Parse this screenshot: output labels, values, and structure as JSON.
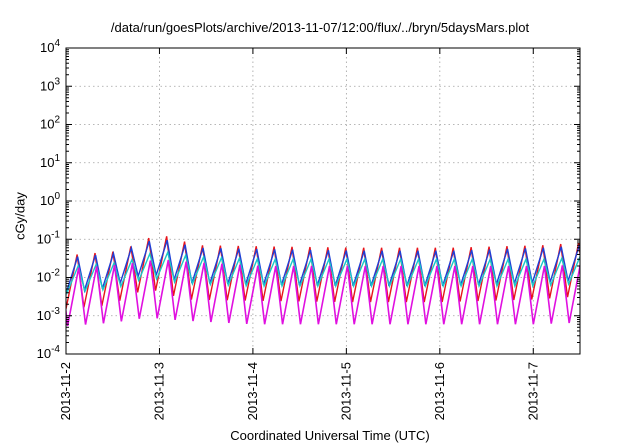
{
  "chart_data": {
    "type": "line",
    "title": "/data/run/goesPlots/archive/2013-11-07/12:00/flux/../bryn/5daysMars.plot",
    "xlabel": "Coordinated Universal Time (UTC)",
    "ylabel": "cGy/day",
    "x_scale": "time",
    "y_scale": "log",
    "xlim": [
      "2013-11-02T00:00",
      "2013-11-07T12:00"
    ],
    "ylim": [
      0.0001,
      10000
    ],
    "x_ticks": [
      "2013-11-2",
      "2013-11-3",
      "2013-11-4",
      "2013-11-5",
      "2013-11-6",
      "2013-11-7"
    ],
    "y_ticks": [
      {
        "base": "10",
        "exp": "-4",
        "value": 0.0001
      },
      {
        "base": "10",
        "exp": "-3",
        "value": 0.001
      },
      {
        "base": "10",
        "exp": "-2",
        "value": 0.01
      },
      {
        "base": "10",
        "exp": "-1",
        "value": 0.1
      },
      {
        "base": "10",
        "exp": "0",
        "value": 1
      },
      {
        "base": "10",
        "exp": "1",
        "value": 10
      },
      {
        "base": "10",
        "exp": "2",
        "value": 100
      },
      {
        "base": "10",
        "exp": "3",
        "value": 1000
      },
      {
        "base": "10",
        "exp": "4",
        "value": 10000
      }
    ],
    "grid": true,
    "legend": "none",
    "sawtooth_period_hours": 4.6,
    "series": [
      {
        "color": "#e8141b",
        "peaks": [
          {
            "t": "2013-11-02T00:00",
            "v": 0.04
          },
          {
            "t": "2013-11-02T12:00",
            "v": 0.05
          },
          {
            "t": "2013-11-02T16:00",
            "v": 0.09
          },
          {
            "t": "2013-11-02T21:00",
            "v": 0.13
          },
          {
            "t": "2013-11-03T01:00",
            "v": 0.11
          },
          {
            "t": "2013-11-03T06:00",
            "v": 0.07
          },
          {
            "t": "2013-11-04T00:00",
            "v": 0.065
          },
          {
            "t": "2013-11-05T00:00",
            "v": 0.06
          },
          {
            "t": "2013-11-06T00:00",
            "v": 0.06
          },
          {
            "t": "2013-11-07T00:00",
            "v": 0.07
          },
          {
            "t": "2013-11-07T12:00",
            "v": 0.085
          }
        ],
        "trough_ratio": 0.038
      },
      {
        "color": "#1f3fd6",
        "peaks": [
          {
            "t": "2013-11-02T00:00",
            "v": 0.035
          },
          {
            "t": "2013-11-02T12:00",
            "v": 0.045
          },
          {
            "t": "2013-11-02T16:00",
            "v": 0.08
          },
          {
            "t": "2013-11-02T21:00",
            "v": 0.1
          },
          {
            "t": "2013-11-03T01:00",
            "v": 0.09
          },
          {
            "t": "2013-11-03T06:00",
            "v": 0.06
          },
          {
            "t": "2013-11-04T00:00",
            "v": 0.055
          },
          {
            "t": "2013-11-05T00:00",
            "v": 0.05
          },
          {
            "t": "2013-11-06T00:00",
            "v": 0.05
          },
          {
            "t": "2013-11-07T00:00",
            "v": 0.06
          },
          {
            "t": "2013-11-07T12:00",
            "v": 0.07
          }
        ],
        "trough_ratio": 0.12
      },
      {
        "color": "#19c8c8",
        "peaks": [
          {
            "t": "2013-11-02T00:00",
            "v": 0.02
          },
          {
            "t": "2013-11-02T12:00",
            "v": 0.025
          },
          {
            "t": "2013-11-02T21:00",
            "v": 0.05
          },
          {
            "t": "2013-11-03T06:00",
            "v": 0.035
          },
          {
            "t": "2013-11-04T00:00",
            "v": 0.03
          },
          {
            "t": "2013-11-05T00:00",
            "v": 0.03
          },
          {
            "t": "2013-11-06T00:00",
            "v": 0.03
          },
          {
            "t": "2013-11-07T00:00",
            "v": 0.03
          },
          {
            "t": "2013-11-07T12:00",
            "v": 0.035
          }
        ],
        "trough_ratio": 0.2
      },
      {
        "color": "#e010e0",
        "peaks": [
          {
            "t": "2013-11-02T00:00",
            "v": 0.018
          },
          {
            "t": "2013-11-02T12:00",
            "v": 0.022
          },
          {
            "t": "2013-11-02T21:00",
            "v": 0.03
          },
          {
            "t": "2013-11-03T06:00",
            "v": 0.025
          },
          {
            "t": "2013-11-04T00:00",
            "v": 0.02
          },
          {
            "t": "2013-11-05T00:00",
            "v": 0.02
          },
          {
            "t": "2013-11-06T00:00",
            "v": 0.02
          },
          {
            "t": "2013-11-07T00:00",
            "v": 0.02
          },
          {
            "t": "2013-11-07T12:00",
            "v": 0.022
          }
        ],
        "trough_ratio": 0.03
      }
    ]
  }
}
